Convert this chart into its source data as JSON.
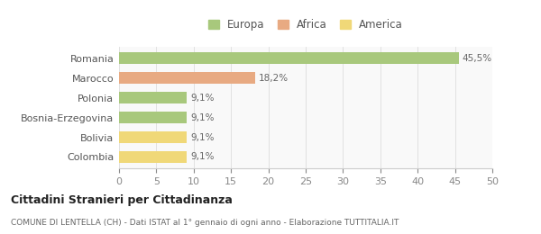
{
  "categories": [
    "Romania",
    "Marocco",
    "Polonia",
    "Bosnia-Erzegovina",
    "Bolivia",
    "Colombia"
  ],
  "values": [
    45.5,
    18.2,
    9.1,
    9.1,
    9.1,
    9.1
  ],
  "bar_colors": [
    "#a8c87c",
    "#e8aa82",
    "#a8c87c",
    "#a8c87c",
    "#f0d878",
    "#f0d878"
  ],
  "value_labels": [
    "45,5%",
    "18,2%",
    "9,1%",
    "9,1%",
    "9,1%",
    "9,1%"
  ],
  "legend": [
    {
      "label": "Europa",
      "color": "#a8c87c"
    },
    {
      "label": "Africa",
      "color": "#e8aa82"
    },
    {
      "label": "America",
      "color": "#f0d878"
    }
  ],
  "xlim": [
    0,
    50
  ],
  "xticks": [
    0,
    5,
    10,
    15,
    20,
    25,
    30,
    35,
    40,
    45,
    50
  ],
  "title": "Cittadini Stranieri per Cittadinanza",
  "subtitle": "COMUNE DI LENTELLA (CH) - Dati ISTAT al 1° gennaio di ogni anno - Elaborazione TUTTITALIA.IT",
  "background_color": "#ffffff",
  "plot_bg_color": "#f9f9f9"
}
